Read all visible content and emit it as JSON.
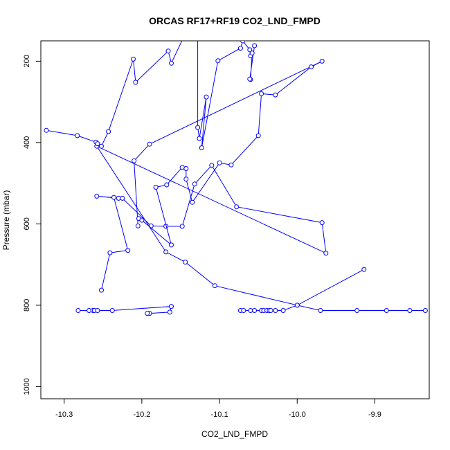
{
  "chart_data": {
    "type": "scatter",
    "title": "ORCAS RF17+RF19 CO2_LND_FMPD",
    "xlabel": "CO2_LND_FMPD",
    "ylabel": "Pressure (mbar)",
    "xlim": [
      -10.33,
      -9.83
    ],
    "ylim": [
      1030,
      150
    ],
    "y_inverted": true,
    "grid": false,
    "x_ticks": [
      -10.3,
      -10.2,
      -10.1,
      -10.0,
      -9.9
    ],
    "x_tick_labels": [
      "-10.3",
      "-10.2",
      "-10.1",
      "-10.0",
      "-9.9"
    ],
    "y_ticks": [
      200,
      400,
      600,
      800,
      1000
    ],
    "y_tick_labels": [
      "200",
      "400",
      "600",
      "800",
      "1000"
    ],
    "series_color": "#0000ff",
    "marker": "open-circle",
    "series": [
      {
        "points": [
          [
            -10.282,
            813
          ],
          [
            -10.268,
            813
          ],
          [
            -10.263,
            813
          ],
          [
            -10.261,
            813
          ],
          [
            -10.257,
            813
          ],
          [
            -10.238,
            813
          ],
          [
            -10.162,
            803
          ],
          [
            -10.164,
            817
          ],
          [
            -10.19,
            820
          ],
          [
            -10.193,
            820
          ]
        ]
      },
      {
        "points": [
          [
            -10.073,
            813
          ],
          [
            -10.069,
            813
          ],
          [
            -10.06,
            813
          ],
          [
            -10.055,
            813
          ],
          [
            -10.046,
            813
          ],
          [
            -10.043,
            813
          ],
          [
            -10.039,
            813
          ],
          [
            -10.036,
            813
          ],
          [
            -10.034,
            813
          ],
          [
            -10.028,
            813
          ],
          [
            -10.018,
            813
          ],
          [
            -10.0,
            800
          ],
          [
            -9.97,
            813
          ],
          [
            -9.923,
            813
          ],
          [
            -9.885,
            813
          ],
          [
            -9.855,
            813
          ],
          [
            -9.835,
            813
          ]
        ]
      },
      {
        "points": [
          [
            -10.252,
            763
          ],
          [
            -10.241,
            671
          ],
          [
            -10.218,
            665
          ],
          [
            -10.236,
            535
          ],
          [
            -10.23,
            537
          ],
          [
            -10.258,
            532
          ],
          [
            -10.225,
            537
          ],
          [
            -10.188,
            605
          ],
          [
            -10.169,
            606
          ],
          [
            -10.148,
            606
          ],
          [
            -10.132,
            502
          ],
          [
            -10.11,
            456
          ],
          [
            -10.078,
            558
          ],
          [
            -9.968,
            597
          ],
          [
            -9.963,
            672
          ],
          [
            -10.258,
            409
          ],
          [
            -10.169,
            669
          ],
          [
            -10.144,
            694
          ],
          [
            -10.106,
            752
          ],
          [
            -10.0,
            800
          ],
          [
            -9.914,
            712
          ]
        ]
      },
      {
        "points": [
          [
            -10.204,
            587
          ],
          [
            -10.2,
            591
          ],
          [
            -10.162,
            652
          ],
          [
            -10.182,
            510
          ],
          [
            -10.168,
            504
          ],
          [
            -10.148,
            461
          ],
          [
            -10.143,
            464
          ],
          [
            -10.143,
            490
          ],
          [
            -10.135,
            547
          ],
          [
            -10.1,
            450
          ],
          [
            -10.085,
            455
          ],
          [
            -10.05,
            383
          ],
          [
            -10.046,
            280
          ],
          [
            -10.028,
            283
          ],
          [
            -9.982,
            214
          ],
          [
            -9.968,
            200
          ],
          [
            -10.19,
            404
          ],
          [
            -10.21,
            445
          ],
          [
            -10.205,
            605
          ]
        ]
      },
      {
        "points": [
          [
            -10.323,
            370
          ],
          [
            -10.283,
            383
          ],
          [
            -10.259,
            399
          ],
          [
            -10.257,
            403
          ],
          [
            -10.252,
            409
          ],
          [
            -10.243,
            373
          ],
          [
            -10.211,
            195
          ],
          [
            -10.208,
            252
          ],
          [
            -10.166,
            175
          ],
          [
            -10.162,
            205
          ],
          [
            -10.128,
            67
          ],
          [
            -10.128,
            363
          ],
          [
            -10.126,
            390
          ],
          [
            -10.117,
            288
          ],
          [
            -10.123,
            413
          ],
          [
            -10.102,
            199
          ],
          [
            -10.073,
            168
          ],
          [
            -10.07,
            150
          ],
          [
            -10.061,
            172
          ],
          [
            -10.06,
            187
          ],
          [
            -10.058,
            180
          ],
          [
            -10.06,
            245
          ],
          [
            -10.061,
            244
          ],
          [
            -10.055,
            162
          ]
        ]
      }
    ]
  }
}
